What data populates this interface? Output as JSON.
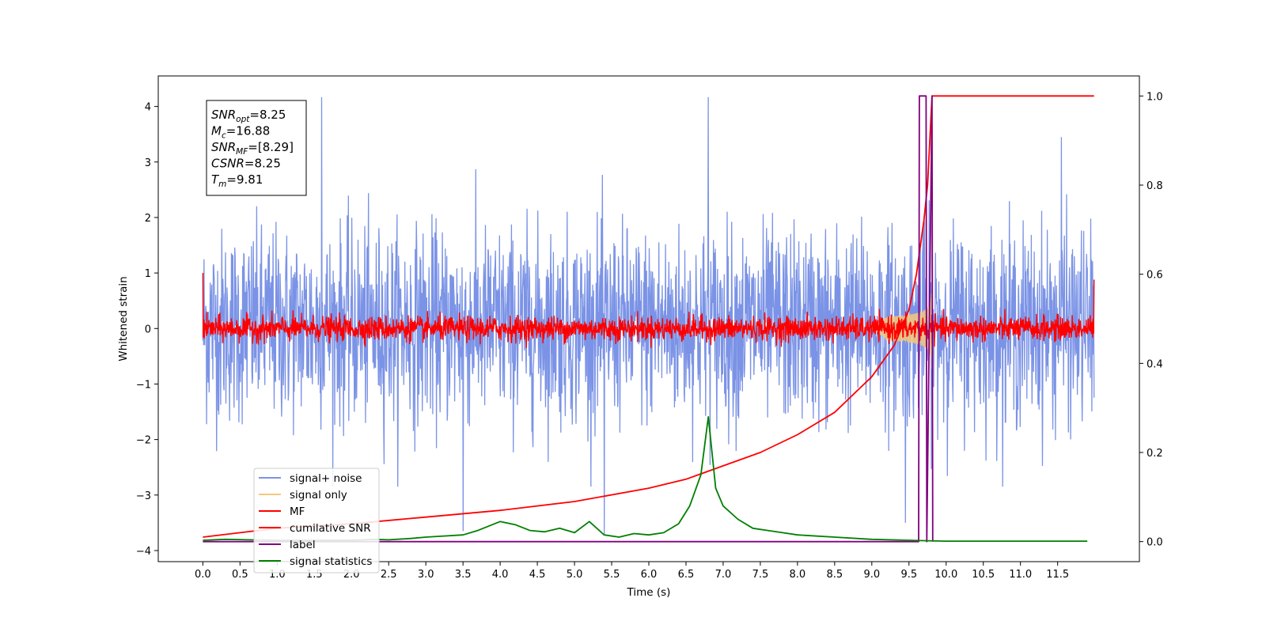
{
  "chart_data": {
    "type": "line",
    "xlabel": "Time (s)",
    "ylabel_left": "Whitened strain",
    "ylabel_right": "",
    "xlim": [
      -0.6,
      12.6
    ],
    "ylim_left": [
      -4.2,
      4.55
    ],
    "ylim_right": [
      -0.045,
      1.045
    ],
    "grid": false,
    "legend_position": "lower-left",
    "x_ticks": [
      0.0,
      0.5,
      1.0,
      1.5,
      2.0,
      2.5,
      3.0,
      3.5,
      4.0,
      4.5,
      5.0,
      5.5,
      6.0,
      6.5,
      7.0,
      7.5,
      8.0,
      8.5,
      9.0,
      9.5,
      10.0,
      10.5,
      11.0,
      11.5
    ],
    "x_tick_labels": [
      "0.0",
      "0.5",
      "1.0",
      "1.5",
      "2.0",
      "2.5",
      "3.0",
      "3.5",
      "4.0",
      "4.5",
      "5.0",
      "5.5",
      "6.0",
      "6.5",
      "7.0",
      "7.5",
      "8.0",
      "8.5",
      "9.0",
      "9.5",
      "10.0",
      "10.5",
      "11.0",
      "11.5"
    ],
    "y_ticks_left": [
      -4,
      -3,
      -2,
      -1,
      0,
      1,
      2,
      3,
      4
    ],
    "y_tick_labels_left": [
      "−4",
      "−3",
      "−2",
      "−1",
      "0",
      "1",
      "2",
      "3",
      "4"
    ],
    "y_ticks_right": [
      0.0,
      0.2,
      0.4,
      0.6,
      0.8,
      1.0
    ],
    "y_tick_labels_right": [
      "0.0",
      "0.2",
      "0.4",
      "0.6",
      "0.8",
      "1.0"
    ],
    "annotation": [
      {
        "sym": "SNR",
        "sub": "opt",
        "value": "=8.25"
      },
      {
        "sym": "M",
        "sub": "c",
        "value": "=16.88"
      },
      {
        "sym": "SNR",
        "sub": "MF",
        "value": "=[8.29]"
      },
      {
        "sym": "CSNR",
        "sub": "",
        "value": "=8.25"
      },
      {
        "sym": "T",
        "sub": "m",
        "value": "=9.81"
      }
    ],
    "series": [
      {
        "name": "signal+ noise",
        "color": "#7b93e6",
        "axis": "left",
        "kind": "noise",
        "x_range": [
          0.0,
          11.99
        ],
        "typical_band": [
          -2.0,
          2.1
        ],
        "extremes": [
          -3.8,
          4.17
        ],
        "spikes": [
          [
            1.6,
            4.17
          ],
          [
            6.8,
            4.17
          ],
          [
            11.55,
            3.45
          ],
          [
            3.5,
            -3.65
          ],
          [
            5.4,
            -3.7
          ],
          [
            9.45,
            -3.5
          ]
        ]
      },
      {
        "name": "signal only",
        "color": "#f5c77a",
        "axis": "left",
        "kind": "chirp",
        "x_range": [
          9.0,
          9.81
        ],
        "peak_amplitude": 0.75
      },
      {
        "name": "MF",
        "color": "#ff0000",
        "axis": "left",
        "kind": "noise",
        "x_range": [
          0.0,
          11.99
        ],
        "typical_band": [
          -0.2,
          0.2
        ],
        "extremes": [
          -0.35,
          0.35
        ],
        "start_value": 1.0,
        "end_value": 0.88
      },
      {
        "name": "cumilative SNR",
        "color": "#ff0000",
        "axis": "right",
        "x": [
          0.0,
          0.5,
          1.0,
          2.0,
          3.0,
          4.0,
          5.0,
          6.0,
          6.5,
          7.0,
          7.5,
          8.0,
          8.5,
          9.0,
          9.3,
          9.5,
          9.6,
          9.7,
          9.75,
          9.81,
          11.99
        ],
        "y": [
          0.01,
          0.02,
          0.03,
          0.04,
          0.055,
          0.07,
          0.09,
          0.12,
          0.14,
          0.17,
          0.2,
          0.24,
          0.29,
          0.37,
          0.44,
          0.52,
          0.6,
          0.72,
          0.8,
          1.0,
          1.0
        ]
      },
      {
        "name": "label",
        "color": "#800080",
        "axis": "right",
        "x": [
          0.0,
          9.63,
          9.64,
          9.73,
          9.74,
          9.81,
          9.82
        ],
        "y": [
          0.0,
          0.0,
          1.0,
          1.0,
          0.0,
          1.0,
          0.0
        ]
      },
      {
        "name": "signal statistics",
        "color": "#008000",
        "axis": "right",
        "x": [
          0.0,
          0.3,
          0.6,
          1.0,
          1.5,
          2.0,
          2.3,
          2.5,
          2.8,
          3.0,
          3.2,
          3.5,
          3.7,
          3.85,
          4.0,
          4.2,
          4.4,
          4.6,
          4.8,
          5.0,
          5.2,
          5.4,
          5.6,
          5.8,
          6.0,
          6.2,
          6.4,
          6.55,
          6.7,
          6.8,
          6.9,
          7.0,
          7.2,
          7.4,
          7.6,
          7.8,
          8.0,
          8.5,
          9.0,
          9.5,
          9.7,
          10.0,
          10.5,
          11.0,
          11.5,
          11.9
        ],
        "y": [
          0.003,
          0.005,
          0.004,
          0.003,
          0.003,
          0.003,
          0.005,
          0.004,
          0.007,
          0.01,
          0.012,
          0.015,
          0.025,
          0.035,
          0.045,
          0.038,
          0.025,
          0.022,
          0.03,
          0.02,
          0.045,
          0.015,
          0.01,
          0.018,
          0.015,
          0.02,
          0.04,
          0.08,
          0.15,
          0.28,
          0.12,
          0.08,
          0.05,
          0.03,
          0.025,
          0.02,
          0.015,
          0.01,
          0.005,
          0.003,
          0.002,
          0.001,
          0.001,
          0.001,
          0.001,
          0.001
        ]
      }
    ]
  }
}
